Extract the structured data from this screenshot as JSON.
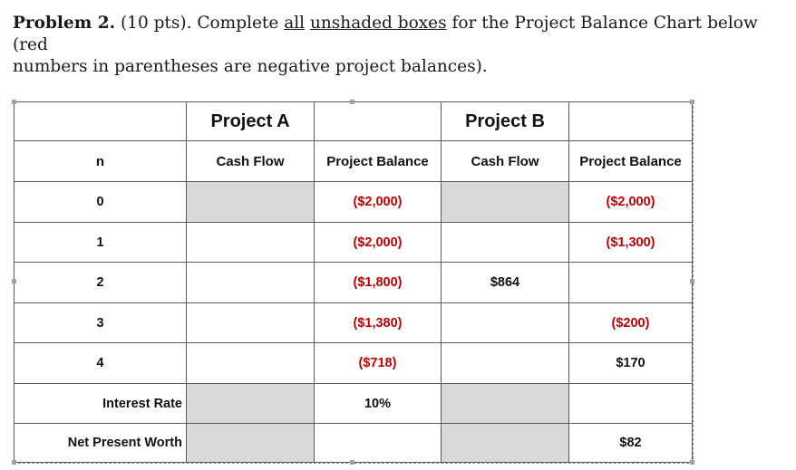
{
  "problem": {
    "label": "Problem 2.",
    "points": "(10 pts).",
    "text_before": "Complete",
    "underline_all": "all",
    "underline_boxes": "unshaded boxes",
    "text_after": "for the Project Balance Chart below (red",
    "line2": "numbers in parentheses are negative project balances)."
  },
  "table": {
    "project_a": "Project A",
    "project_b": "Project B",
    "col_n": "n",
    "col_a_cash": "Cash Flow",
    "col_a_balance": "Project Balance",
    "col_b_cash": "Cash Flow",
    "col_b_balance": "Project Balance",
    "rows": [
      {
        "n": "0",
        "a_cash": "",
        "a_bal": "($2,000)",
        "b_cash": "",
        "b_bal": "($2,000)"
      },
      {
        "n": "1",
        "a_cash": "",
        "a_bal": "($2,000)",
        "b_cash": "",
        "b_bal": "($1,300)"
      },
      {
        "n": "2",
        "a_cash": "",
        "a_bal": "($1,800)",
        "b_cash": "$864",
        "b_bal": ""
      },
      {
        "n": "3",
        "a_cash": "",
        "a_bal": "($1,380)",
        "b_cash": "",
        "b_bal": "($200)"
      },
      {
        "n": "4",
        "a_cash": "",
        "a_bal": "($718)",
        "b_cash": "",
        "b_bal": "$170"
      }
    ],
    "interest_label": "Interest Rate",
    "interest_a": "10%",
    "interest_b": "",
    "npw_label": "Net Present Worth",
    "npw_a": "",
    "npw_b": "$82"
  },
  "colors": {
    "negative": "#c00000",
    "shaded": "#d9d9d9"
  }
}
